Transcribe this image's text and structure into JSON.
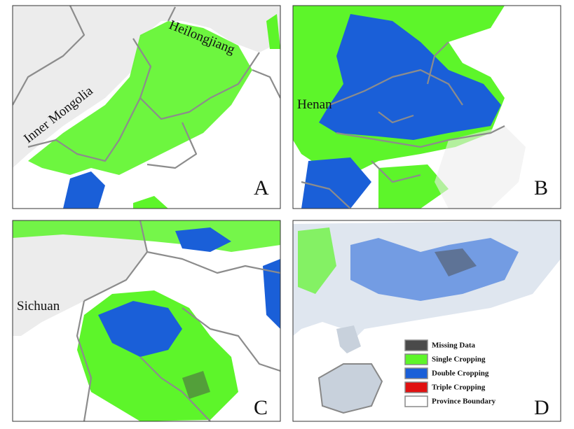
{
  "panels": [
    {
      "letter": "A",
      "labels": [
        "Inner Mongolia",
        "Heilongjiang"
      ]
    },
    {
      "letter": "B",
      "labels": [
        "Henan"
      ]
    },
    {
      "letter": "C",
      "labels": [
        "Sichuan"
      ]
    },
    {
      "letter": "D"
    }
  ],
  "legend": [
    {
      "label": "Missing Data",
      "color": "#4a4a4a"
    },
    {
      "label": "Single Cropping",
      "color": "#5df52a"
    },
    {
      "label": "Double Cropping",
      "color": "#1a5fd8"
    },
    {
      "label": "Triple Cropping",
      "color": "#e01010"
    },
    {
      "label": "Province Boundary",
      "color": "#ffffff"
    }
  ]
}
